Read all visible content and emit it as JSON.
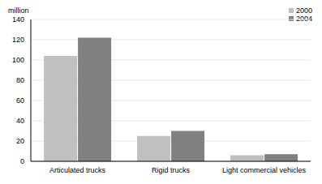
{
  "chart_data": {
    "type": "bar",
    "y_label": "million",
    "categories": [
      "Articulated trucks",
      "Rigid trucks",
      "Light commercial vehicles"
    ],
    "series": [
      {
        "name": "2000",
        "color": "#c0c0c0",
        "values": [
          104,
          25,
          6
        ]
      },
      {
        "name": "2004",
        "color": "#808080",
        "values": [
          122,
          30,
          7
        ]
      }
    ],
    "ylim": [
      0,
      140
    ],
    "yticks": [
      0,
      20,
      40,
      60,
      80,
      100,
      120,
      140
    ],
    "grid": true,
    "legend": "top-right"
  }
}
